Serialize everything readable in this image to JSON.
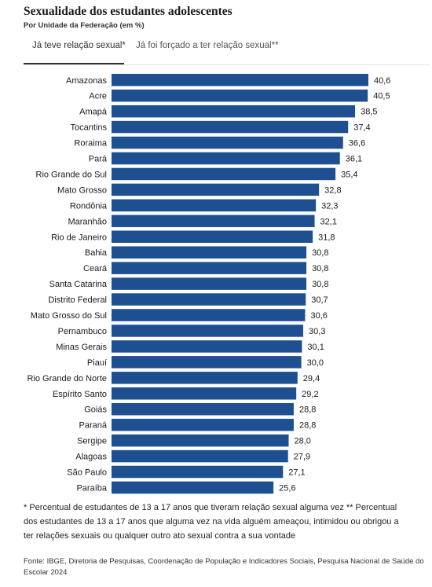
{
  "header": {
    "title": "Sexualidade dos estudantes adolescentes",
    "subtitle": "Por Unidade da Federação (em %)"
  },
  "tabs": [
    {
      "label": "Já teve relação sexual*",
      "active": true
    },
    {
      "label": "Já foi forçado a ter relação sexual**",
      "active": false
    }
  ],
  "colors": {
    "bar": "#1d4f91",
    "text": "#1a1a1a"
  },
  "chart_data": {
    "type": "bar",
    "orientation": "horizontal",
    "categories": [
      "Amazonas",
      "Acre",
      "Amapá",
      "Tocantins",
      "Roraima",
      "Pará",
      "Rio Grande do Sul",
      "Mato Grosso",
      "Rondônia",
      "Maranhão",
      "Rio de Janeiro",
      "Bahia",
      "Ceará",
      "Santa Catarina",
      "Distrito Federal",
      "Mato Grosso do Sul",
      "Pernambuco",
      "Minas Gerais",
      "Piauí",
      "Rio Grande do Norte",
      "Espírito Santo",
      "Goiás",
      "Paraná",
      "Sergipe",
      "Alagoas",
      "São Paulo",
      "Paraíba"
    ],
    "values": [
      40.6,
      40.5,
      38.5,
      37.4,
      36.6,
      36.1,
      35.4,
      32.8,
      32.3,
      32.1,
      31.8,
      30.8,
      30.8,
      30.8,
      30.7,
      30.6,
      30.3,
      30.1,
      30.0,
      29.4,
      29.2,
      28.8,
      28.8,
      28.0,
      27.9,
      27.1,
      25.6
    ],
    "labels": [
      "40,6",
      "40,5",
      "38,5",
      "37,4",
      "36,6",
      "36,1",
      "35,4",
      "32,8",
      "32,3",
      "32,1",
      "31,8",
      "30,8",
      "30,8",
      "30,8",
      "30,7",
      "30,6",
      "30,3",
      "30,1",
      "30,0",
      "29,4",
      "29,2",
      "28,8",
      "28,8",
      "28,0",
      "27,9",
      "27,1",
      "25,6"
    ],
    "xlim": [
      0,
      40.6
    ],
    "grid": false
  },
  "footnote": "* Percentual de estudantes de 13 a 17 anos que tiveram relação sexual alguma vez ** Percentual dos estudantes de 13 a 17 anos que alguma vez na vida alguém ameaçou, intimidou ou obrigou a ter relações sexuais ou qualquer outro ato sexual contra a sua vontade",
  "source": "Fonte: IBGE, Diretoria de Pesquisas, Coordenação de População e Indicadores Sociais, Pesquisa Nacional de Saúde do Escolar 2024"
}
